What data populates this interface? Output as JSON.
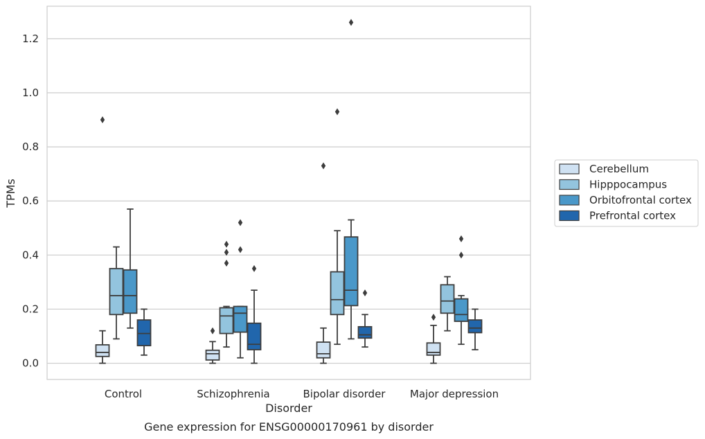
{
  "caption": "Gene expression for ENSG00000170961 by disorder",
  "chart_data": {
    "type": "box",
    "xlabel": "Disorder",
    "ylabel": "TPMs",
    "ylim": [
      -0.06,
      1.32
    ],
    "yticks": [
      "0.0",
      "0.2",
      "0.4",
      "0.6",
      "0.8",
      "1.0",
      "1.2"
    ],
    "categories": [
      "Control",
      "Schizophrenia",
      "Bipolar disorder",
      "Major depression"
    ],
    "grid": "horizontal",
    "legend_placement": "right",
    "series": [
      {
        "name": "Cerebellum",
        "color": "#cfe1f2",
        "boxes": [
          {
            "q1": 0.025,
            "median": 0.04,
            "q3": 0.068,
            "whisker_low": 0.0,
            "whisker_high": 0.12,
            "outliers": [
              0.9
            ]
          },
          {
            "q1": 0.012,
            "median": 0.035,
            "q3": 0.048,
            "whisker_low": 0.0,
            "whisker_high": 0.08,
            "outliers": [
              0.12
            ]
          },
          {
            "q1": 0.02,
            "median": 0.035,
            "q3": 0.078,
            "whisker_low": 0.0,
            "whisker_high": 0.13,
            "outliers": [
              0.73
            ]
          },
          {
            "q1": 0.03,
            "median": 0.04,
            "q3": 0.075,
            "whisker_low": 0.0,
            "whisker_high": 0.14,
            "outliers": [
              0.17
            ]
          }
        ]
      },
      {
        "name": "Hipppocampus",
        "color": "#93c4de",
        "boxes": [
          {
            "q1": 0.18,
            "median": 0.25,
            "q3": 0.35,
            "whisker_low": 0.09,
            "whisker_high": 0.43,
            "outliers": []
          },
          {
            "q1": 0.11,
            "median": 0.175,
            "q3": 0.205,
            "whisker_low": 0.06,
            "whisker_high": 0.21,
            "outliers": [
              0.37,
              0.41,
              0.44
            ]
          },
          {
            "q1": 0.18,
            "median": 0.235,
            "q3": 0.338,
            "whisker_low": 0.07,
            "whisker_high": 0.49,
            "outliers": [
              0.93
            ]
          },
          {
            "q1": 0.185,
            "median": 0.23,
            "q3": 0.29,
            "whisker_low": 0.12,
            "whisker_high": 0.32,
            "outliers": []
          }
        ]
      },
      {
        "name": "Orbitofrontal cortex",
        "color": "#4a98c9",
        "boxes": [
          {
            "q1": 0.185,
            "median": 0.25,
            "q3": 0.345,
            "whisker_low": 0.13,
            "whisker_high": 0.57,
            "outliers": []
          },
          {
            "q1": 0.115,
            "median": 0.185,
            "q3": 0.21,
            "whisker_low": 0.02,
            "whisker_high": 0.21,
            "outliers": [
              0.42,
              0.52
            ]
          },
          {
            "q1": 0.213,
            "median": 0.27,
            "q3": 0.467,
            "whisker_low": 0.09,
            "whisker_high": 0.53,
            "outliers": [
              1.26
            ]
          },
          {
            "q1": 0.155,
            "median": 0.18,
            "q3": 0.238,
            "whisker_low": 0.07,
            "whisker_high": 0.25,
            "outliers": [
              0.4,
              0.46
            ]
          }
        ]
      },
      {
        "name": "Prefrontal cortex",
        "color": "#2166ac",
        "boxes": [
          {
            "q1": 0.065,
            "median": 0.11,
            "q3": 0.16,
            "whisker_low": 0.03,
            "whisker_high": 0.2,
            "outliers": []
          },
          {
            "q1": 0.05,
            "median": 0.07,
            "q3": 0.148,
            "whisker_low": 0.0,
            "whisker_high": 0.27,
            "outliers": [
              0.35
            ]
          },
          {
            "q1": 0.093,
            "median": 0.105,
            "q3": 0.135,
            "whisker_low": 0.06,
            "whisker_high": 0.18,
            "outliers": [
              0.26
            ]
          },
          {
            "q1": 0.113,
            "median": 0.13,
            "q3": 0.16,
            "whisker_low": 0.05,
            "whisker_high": 0.2,
            "outliers": []
          }
        ]
      }
    ]
  }
}
